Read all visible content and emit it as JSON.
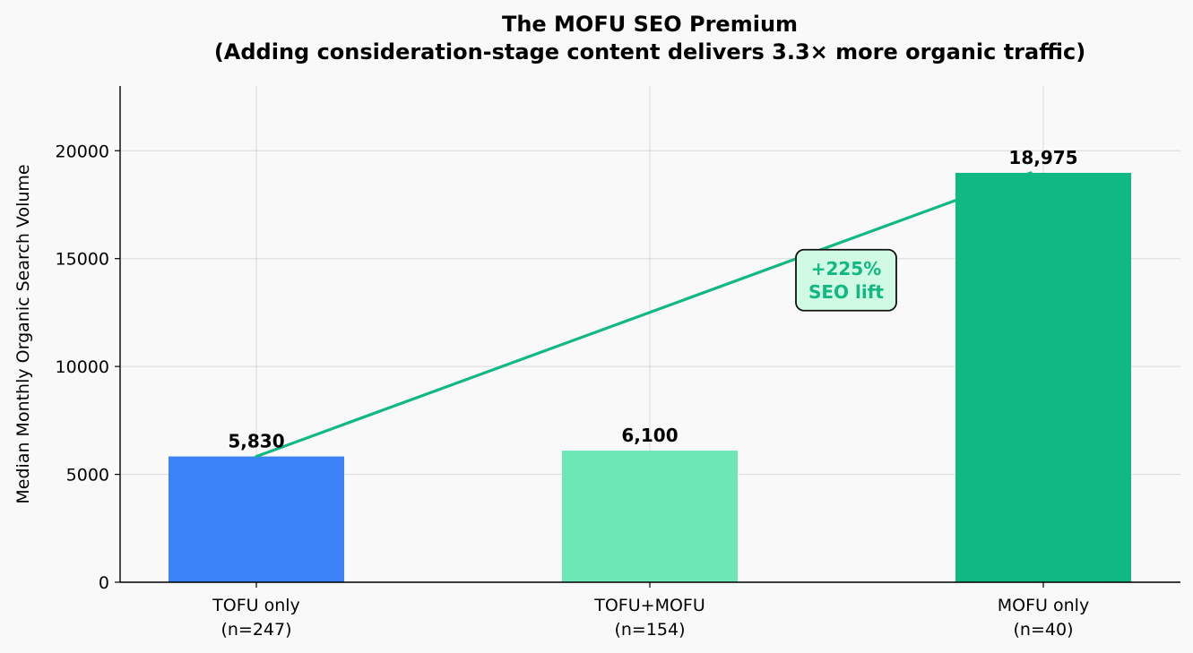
{
  "chart_data": {
    "type": "bar",
    "title": "The MOFU SEO Premium",
    "subtitle": "(Adding consideration-stage content delivers 3.3× more organic traffic)",
    "xlabel": "",
    "ylabel": "Median Monthly Organic Search Volume",
    "categories": [
      {
        "name": "TOFU only",
        "n": "(n=247)"
      },
      {
        "name": "TOFU+MOFU",
        "n": "(n=154)"
      },
      {
        "name": "MOFU only",
        "n": "(n=40)"
      }
    ],
    "values": [
      5830,
      6100,
      18975
    ],
    "value_labels": [
      "5,830",
      "6,100",
      "18,975"
    ],
    "colors": [
      "#3b82f6",
      "#6ee7b7",
      "#10b981"
    ],
    "ylim": [
      0,
      23000
    ],
    "yticks": [
      0,
      5000,
      10000,
      15000,
      20000
    ],
    "grid": true,
    "trend_line": {
      "from_category": 0,
      "to_category": 2,
      "color": "#10b981"
    },
    "annotation": {
      "line1": "+225%",
      "line2": "SEO lift",
      "text_color": "#10b981",
      "box_fill": "#d1fae5",
      "at_value": 14000
    }
  }
}
